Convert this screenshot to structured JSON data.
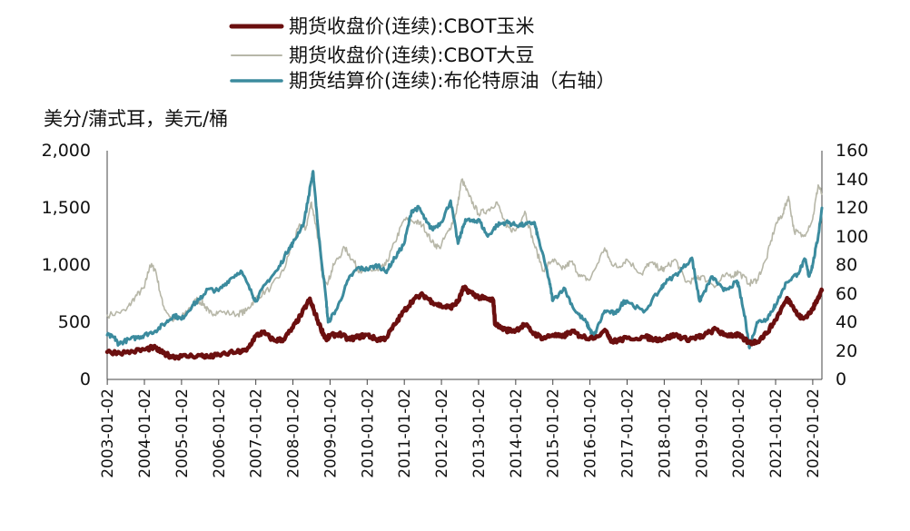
{
  "chart_data": {
    "type": "line",
    "legend_position": "top",
    "ylabel": "美分/蒲式耳，美元/桶",
    "y_left_ticks": [
      "2,000",
      "1,500",
      "1,000",
      "500",
      "0"
    ],
    "y_right_ticks": [
      "160",
      "140",
      "120",
      "100",
      "80",
      "60",
      "40",
      "20",
      "0"
    ],
    "ylim_left": [
      0,
      2000
    ],
    "ylim_right": [
      0,
      160
    ],
    "x_tick_labels": [
      "2003-01-02",
      "2004-01-02",
      "2005-01-02",
      "2006-01-02",
      "2007-01-02",
      "2008-01-02",
      "2009-01-02",
      "2010-01-02",
      "2011-01-02",
      "2012-01-02",
      "2013-01-02",
      "2014-01-02",
      "2015-01-02",
      "2016-01-02",
      "2017-01-02",
      "2018-01-02",
      "2019-01-02",
      "2020-01-02",
      "2021-01-02",
      "2022-01-02"
    ],
    "xlim": [
      2003.0,
      2022.25
    ],
    "series": [
      {
        "name": "期货收盘价(连续):CBOT玉米",
        "axis": "left",
        "color": "#6b0f0f",
        "points": [
          [
            2003.0,
            240
          ],
          [
            2003.5,
            235
          ],
          [
            2004.0,
            260
          ],
          [
            2004.25,
            280
          ],
          [
            2004.5,
            230
          ],
          [
            2004.75,
            200
          ],
          [
            2005.0,
            200
          ],
          [
            2005.5,
            210
          ],
          [
            2005.75,
            195
          ],
          [
            2006.0,
            215
          ],
          [
            2006.5,
            240
          ],
          [
            2006.75,
            250
          ],
          [
            2007.0,
            380
          ],
          [
            2007.2,
            410
          ],
          [
            2007.5,
            340
          ],
          [
            2007.75,
            350
          ],
          [
            2008.0,
            450
          ],
          [
            2008.25,
            580
          ],
          [
            2008.45,
            700
          ],
          [
            2008.55,
            620
          ],
          [
            2008.75,
            450
          ],
          [
            2008.9,
            350
          ],
          [
            2009.0,
            380
          ],
          [
            2009.25,
            400
          ],
          [
            2009.5,
            350
          ],
          [
            2009.75,
            370
          ],
          [
            2010.0,
            390
          ],
          [
            2010.25,
            350
          ],
          [
            2010.5,
            360
          ],
          [
            2010.75,
            480
          ],
          [
            2011.0,
            600
          ],
          [
            2011.25,
            700
          ],
          [
            2011.5,
            740
          ],
          [
            2011.75,
            680
          ],
          [
            2012.0,
            640
          ],
          [
            2012.25,
            630
          ],
          [
            2012.45,
            680
          ],
          [
            2012.6,
            800
          ],
          [
            2012.8,
            760
          ],
          [
            2013.0,
            720
          ],
          [
            2013.25,
            700
          ],
          [
            2013.4,
            690
          ],
          [
            2013.45,
            480
          ],
          [
            2013.75,
            430
          ],
          [
            2014.0,
            430
          ],
          [
            2014.25,
            480
          ],
          [
            2014.5,
            400
          ],
          [
            2014.75,
            360
          ],
          [
            2015.0,
            390
          ],
          [
            2015.25,
            370
          ],
          [
            2015.5,
            420
          ],
          [
            2015.75,
            380
          ],
          [
            2016.0,
            360
          ],
          [
            2016.45,
            420
          ],
          [
            2016.6,
            330
          ],
          [
            2016.75,
            340
          ],
          [
            2017.0,
            360
          ],
          [
            2017.5,
            370
          ],
          [
            2017.75,
            350
          ],
          [
            2018.0,
            355
          ],
          [
            2018.3,
            390
          ],
          [
            2018.6,
            350
          ],
          [
            2018.9,
            370
          ],
          [
            2019.0,
            375
          ],
          [
            2019.4,
            440
          ],
          [
            2019.6,
            390
          ],
          [
            2019.9,
            390
          ],
          [
            2020.0,
            385
          ],
          [
            2020.3,
            320
          ],
          [
            2020.5,
            330
          ],
          [
            2020.75,
            400
          ],
          [
            2021.0,
            520
          ],
          [
            2021.3,
            700
          ],
          [
            2021.4,
            680
          ],
          [
            2021.6,
            560
          ],
          [
            2021.75,
            530
          ],
          [
            2022.0,
            610
          ],
          [
            2022.15,
            720
          ],
          [
            2022.25,
            780
          ]
        ]
      },
      {
        "name": "期货收盘价(连续):CBOT大豆",
        "axis": "left",
        "color": "#b7b7a8",
        "points": [
          [
            2003.0,
            560
          ],
          [
            2003.5,
            600
          ],
          [
            2003.75,
            720
          ],
          [
            2004.0,
            800
          ],
          [
            2004.15,
            1000
          ],
          [
            2004.3,
            960
          ],
          [
            2004.5,
            650
          ],
          [
            2004.75,
            520
          ],
          [
            2005.0,
            540
          ],
          [
            2005.4,
            700
          ],
          [
            2005.6,
            660
          ],
          [
            2005.75,
            580
          ],
          [
            2006.0,
            590
          ],
          [
            2006.5,
            570
          ],
          [
            2006.75,
            600
          ],
          [
            2007.0,
            710
          ],
          [
            2007.4,
            800
          ],
          [
            2007.75,
            950
          ],
          [
            2008.0,
            1200
          ],
          [
            2008.2,
            1350
          ],
          [
            2008.35,
            1320
          ],
          [
            2008.5,
            1550
          ],
          [
            2008.65,
            1300
          ],
          [
            2008.8,
            900
          ],
          [
            2008.95,
            850
          ],
          [
            2009.1,
            1000
          ],
          [
            2009.4,
            1150
          ],
          [
            2009.6,
            1050
          ],
          [
            2009.8,
            950
          ],
          [
            2010.0,
            960
          ],
          [
            2010.3,
            950
          ],
          [
            2010.5,
            1000
          ],
          [
            2010.75,
            1200
          ],
          [
            2011.0,
            1400
          ],
          [
            2011.3,
            1380
          ],
          [
            2011.5,
            1350
          ],
          [
            2011.75,
            1200
          ],
          [
            2011.95,
            1150
          ],
          [
            2012.2,
            1300
          ],
          [
            2012.4,
            1450
          ],
          [
            2012.55,
            1750
          ],
          [
            2012.75,
            1600
          ],
          [
            2013.0,
            1450
          ],
          [
            2013.25,
            1480
          ],
          [
            2013.5,
            1550
          ],
          [
            2013.75,
            1330
          ],
          [
            2014.0,
            1300
          ],
          [
            2014.25,
            1470
          ],
          [
            2014.5,
            1180
          ],
          [
            2014.75,
            950
          ],
          [
            2015.0,
            1050
          ],
          [
            2015.25,
            960
          ],
          [
            2015.5,
            1030
          ],
          [
            2015.75,
            900
          ],
          [
            2016.0,
            870
          ],
          [
            2016.4,
            1150
          ],
          [
            2016.55,
            1030
          ],
          [
            2016.75,
            980
          ],
          [
            2017.0,
            1050
          ],
          [
            2017.4,
            920
          ],
          [
            2017.6,
            1020
          ],
          [
            2017.9,
            970
          ],
          [
            2018.0,
            960
          ],
          [
            2018.3,
            1050
          ],
          [
            2018.6,
            850
          ],
          [
            2018.9,
            880
          ],
          [
            2019.0,
            900
          ],
          [
            2019.4,
            820
          ],
          [
            2019.6,
            900
          ],
          [
            2019.9,
            920
          ],
          [
            2020.0,
            940
          ],
          [
            2020.3,
            840
          ],
          [
            2020.5,
            870
          ],
          [
            2020.75,
            1050
          ],
          [
            2021.0,
            1350
          ],
          [
            2021.2,
            1450
          ],
          [
            2021.35,
            1600
          ],
          [
            2021.5,
            1300
          ],
          [
            2021.75,
            1250
          ],
          [
            2022.0,
            1400
          ],
          [
            2022.15,
            1700
          ],
          [
            2022.25,
            1620
          ]
        ]
      },
      {
        "name": "期货结算价(连续):布伦特原油（右轴）",
        "axis": "right",
        "color": "#3b8b9e",
        "points": [
          [
            2003.0,
            31
          ],
          [
            2003.2,
            29
          ],
          [
            2003.3,
            25
          ],
          [
            2003.6,
            28
          ],
          [
            2003.9,
            30
          ],
          [
            2004.0,
            31
          ],
          [
            2004.3,
            34
          ],
          [
            2004.6,
            40
          ],
          [
            2004.8,
            45
          ],
          [
            2005.0,
            42
          ],
          [
            2005.3,
            52
          ],
          [
            2005.5,
            56
          ],
          [
            2005.7,
            63
          ],
          [
            2006.0,
            62
          ],
          [
            2006.3,
            70
          ],
          [
            2006.6,
            76
          ],
          [
            2006.9,
            60
          ],
          [
            2007.0,
            55
          ],
          [
            2007.3,
            68
          ],
          [
            2007.6,
            77
          ],
          [
            2007.9,
            92
          ],
          [
            2008.0,
            95
          ],
          [
            2008.3,
            110
          ],
          [
            2008.5,
            139
          ],
          [
            2008.55,
            145
          ],
          [
            2008.7,
            100
          ],
          [
            2008.9,
            55
          ],
          [
            2008.95,
            40
          ],
          [
            2009.2,
            50
          ],
          [
            2009.5,
            70
          ],
          [
            2009.75,
            78
          ],
          [
            2010.0,
            77
          ],
          [
            2010.3,
            80
          ],
          [
            2010.5,
            75
          ],
          [
            2010.75,
            85
          ],
          [
            2011.0,
            95
          ],
          [
            2011.2,
            118
          ],
          [
            2011.4,
            120
          ],
          [
            2011.6,
            110
          ],
          [
            2011.75,
            105
          ],
          [
            2012.0,
            110
          ],
          [
            2012.25,
            125
          ],
          [
            2012.45,
            95
          ],
          [
            2012.65,
            112
          ],
          [
            2012.9,
            110
          ],
          [
            2013.0,
            112
          ],
          [
            2013.25,
            100
          ],
          [
            2013.5,
            108
          ],
          [
            2013.75,
            110
          ],
          [
            2014.0,
            108
          ],
          [
            2014.25,
            108
          ],
          [
            2014.5,
            110
          ],
          [
            2014.6,
            100
          ],
          [
            2014.9,
            70
          ],
          [
            2015.0,
            55
          ],
          [
            2015.3,
            64
          ],
          [
            2015.6,
            48
          ],
          [
            2015.9,
            40
          ],
          [
            2016.0,
            35
          ],
          [
            2016.1,
            30
          ],
          [
            2016.4,
            48
          ],
          [
            2016.7,
            46
          ],
          [
            2016.9,
            54
          ],
          [
            2017.0,
            55
          ],
          [
            2017.45,
            47
          ],
          [
            2017.9,
            63
          ],
          [
            2018.0,
            67
          ],
          [
            2018.4,
            75
          ],
          [
            2018.75,
            85
          ],
          [
            2018.95,
            55
          ],
          [
            2019.0,
            57
          ],
          [
            2019.3,
            72
          ],
          [
            2019.6,
            62
          ],
          [
            2019.95,
            68
          ],
          [
            2020.0,
            66
          ],
          [
            2020.2,
            40
          ],
          [
            2020.3,
            22
          ],
          [
            2020.5,
            40
          ],
          [
            2020.75,
            42
          ],
          [
            2020.95,
            50
          ],
          [
            2021.0,
            52
          ],
          [
            2021.3,
            68
          ],
          [
            2021.6,
            74
          ],
          [
            2021.8,
            84
          ],
          [
            2021.9,
            72
          ],
          [
            2022.0,
            80
          ],
          [
            2022.15,
            100
          ],
          [
            2022.25,
            120
          ]
        ]
      }
    ]
  }
}
